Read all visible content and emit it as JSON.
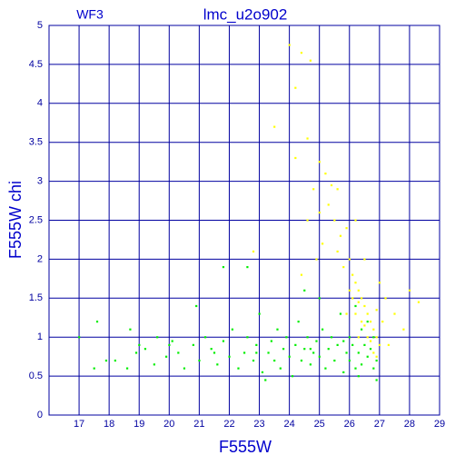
{
  "chart_data": {
    "type": "scatter",
    "title": "lmc_u2o902",
    "annotation": "WF3",
    "x_label": "F555W",
    "y_label": "F555W chi",
    "xlim": [
      16,
      29
    ],
    "xticks": [
      17,
      18,
      19,
      20,
      21,
      22,
      23,
      24,
      25,
      26,
      27,
      28,
      29
    ],
    "ylim": [
      0,
      5
    ],
    "yticks": [
      0,
      0.5,
      1,
      1.5,
      2,
      2.5,
      3,
      3.5,
      4,
      4.5,
      5
    ],
    "grid": true,
    "grid_color": "#0000a0",
    "series": [
      {
        "color": "#00ee00",
        "x": [
          17.0,
          17.5,
          17.6,
          17.9,
          18.2,
          18.6,
          18.7,
          18.9,
          19.0,
          19.2,
          19.6,
          19.9,
          20.1,
          20.3,
          20.5,
          20.8,
          21.0,
          21.2,
          21.4,
          21.6,
          21.8,
          22.0,
          22.1,
          22.3,
          22.5,
          22.6,
          22.8,
          22.9,
          23.0,
          23.1,
          23.3,
          23.4,
          23.5,
          23.6,
          23.7,
          23.8,
          23.9,
          24.0,
          24.1,
          24.2,
          24.3,
          24.4,
          24.5,
          24.6,
          24.7,
          24.8,
          24.9,
          25.0,
          25.1,
          25.2,
          25.3,
          25.4,
          25.5,
          25.6,
          25.7,
          25.8,
          25.9,
          26.0,
          26.0,
          26.1,
          26.2,
          26.2,
          26.3,
          26.4,
          26.4,
          26.5,
          26.6,
          26.6,
          26.7,
          26.8,
          26.8,
          26.9,
          21.8,
          22.6,
          20.9,
          25.0,
          24.5,
          23.2,
          26.9,
          19.5,
          20.0,
          21.5,
          22.9,
          24.7,
          25.8,
          26.3
        ],
        "values": [
          1.0,
          0.6,
          1.2,
          0.7,
          0.7,
          0.6,
          1.1,
          0.8,
          0.9,
          0.85,
          1.0,
          0.75,
          0.95,
          0.8,
          0.6,
          0.9,
          0.7,
          1.0,
          0.85,
          0.65,
          0.95,
          0.75,
          1.1,
          0.6,
          0.8,
          1.0,
          0.7,
          0.9,
          1.3,
          0.55,
          0.8,
          0.95,
          0.7,
          1.1,
          0.6,
          0.85,
          1.0,
          0.75,
          0.5,
          0.9,
          1.2,
          0.7,
          0.85,
          1.0,
          0.65,
          0.8,
          0.95,
          0.75,
          1.1,
          0.6,
          0.85,
          1.0,
          0.7,
          0.9,
          1.3,
          0.55,
          0.8,
          1.0,
          0.7,
          0.9,
          1.4,
          0.6,
          0.8,
          1.1,
          0.65,
          0.9,
          0.75,
          1.2,
          0.85,
          0.6,
          1.0,
          0.7,
          1.9,
          1.9,
          1.4,
          1.5,
          1.6,
          0.45,
          0.45,
          0.65,
          0.9,
          0.8,
          0.8,
          0.85,
          0.95,
          0.5
        ]
      },
      {
        "color": "#ffff00",
        "x": [
          24.0,
          24.4,
          24.7,
          23.5,
          24.2,
          24.6,
          24.2,
          25.0,
          25.2,
          24.8,
          25.4,
          25.6,
          24.6,
          25.0,
          25.3,
          25.5,
          25.7,
          25.9,
          25.1,
          25.6,
          25.8,
          26.0,
          26.1,
          26.2,
          26.3,
          26.4,
          26.5,
          26.6,
          26.7,
          26.8,
          26.9,
          27.0,
          26.2,
          26.4,
          26.6,
          26.8,
          26.3,
          26.5,
          26.7,
          26.9,
          26.1,
          26.0,
          26.3,
          27.2,
          27.5,
          27.8,
          28.0,
          28.3,
          27.3,
          26.5,
          27.0,
          25.9,
          26.9,
          27.1,
          24.9,
          24.4,
          22.8,
          26.2
        ],
        "values": [
          4.75,
          4.65,
          4.55,
          3.7,
          4.2,
          3.55,
          3.3,
          3.25,
          3.1,
          2.9,
          2.95,
          2.9,
          2.5,
          2.6,
          2.7,
          2.5,
          2.3,
          2.4,
          2.2,
          2.1,
          1.9,
          2.0,
          1.8,
          1.7,
          1.6,
          1.5,
          1.4,
          1.3,
          1.2,
          1.1,
          1.0,
          0.9,
          1.3,
          1.2,
          1.0,
          0.8,
          1.0,
          1.15,
          0.95,
          0.75,
          1.5,
          1.6,
          1.45,
          1.5,
          1.3,
          1.1,
          1.6,
          1.45,
          0.9,
          2.0,
          1.7,
          1.3,
          1.35,
          1.2,
          2.0,
          1.8,
          2.1,
          2.5
        ]
      }
    ]
  }
}
